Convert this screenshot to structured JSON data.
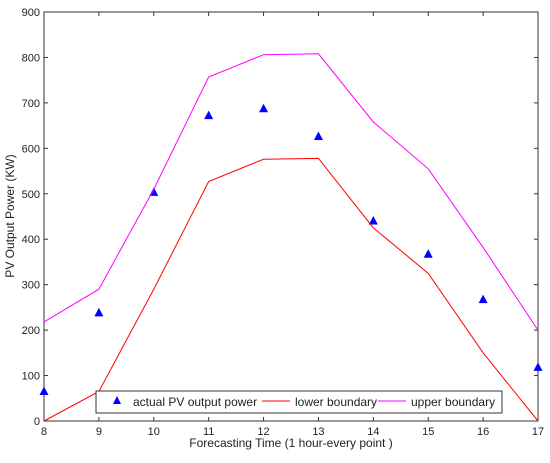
{
  "chart_data": {
    "type": "line",
    "title": "",
    "xlabel": "Forecasting Time (1 hour-every point )",
    "ylabel": "PV Output Power (KW)",
    "xlim": [
      8,
      17
    ],
    "ylim": [
      0,
      900
    ],
    "x_ticks": [
      8,
      9,
      10,
      11,
      12,
      13,
      14,
      15,
      16,
      17
    ],
    "y_ticks": [
      0,
      100,
      200,
      300,
      400,
      500,
      600,
      700,
      800,
      900
    ],
    "grid": false,
    "legend_position": "bottom-center",
    "x": [
      8,
      9,
      10,
      11,
      12,
      13,
      14,
      15,
      16,
      17
    ],
    "series": [
      {
        "name": "actual PV output power",
        "kind": "scatter",
        "marker": "triangle",
        "color": "#0000ff",
        "values": [
          65,
          238,
          503,
          672,
          687,
          626,
          440,
          367,
          267,
          118
        ]
      },
      {
        "name": "lower boundary",
        "kind": "line",
        "color": "#ff0000",
        "values": [
          0,
          65,
          290,
          527,
          576,
          578,
          425,
          325,
          150,
          0
        ]
      },
      {
        "name": "upper boundary",
        "kind": "line",
        "color": "#ff00ff",
        "values": [
          218,
          290,
          510,
          757,
          806,
          808,
          658,
          555,
          382,
          200
        ]
      }
    ]
  }
}
